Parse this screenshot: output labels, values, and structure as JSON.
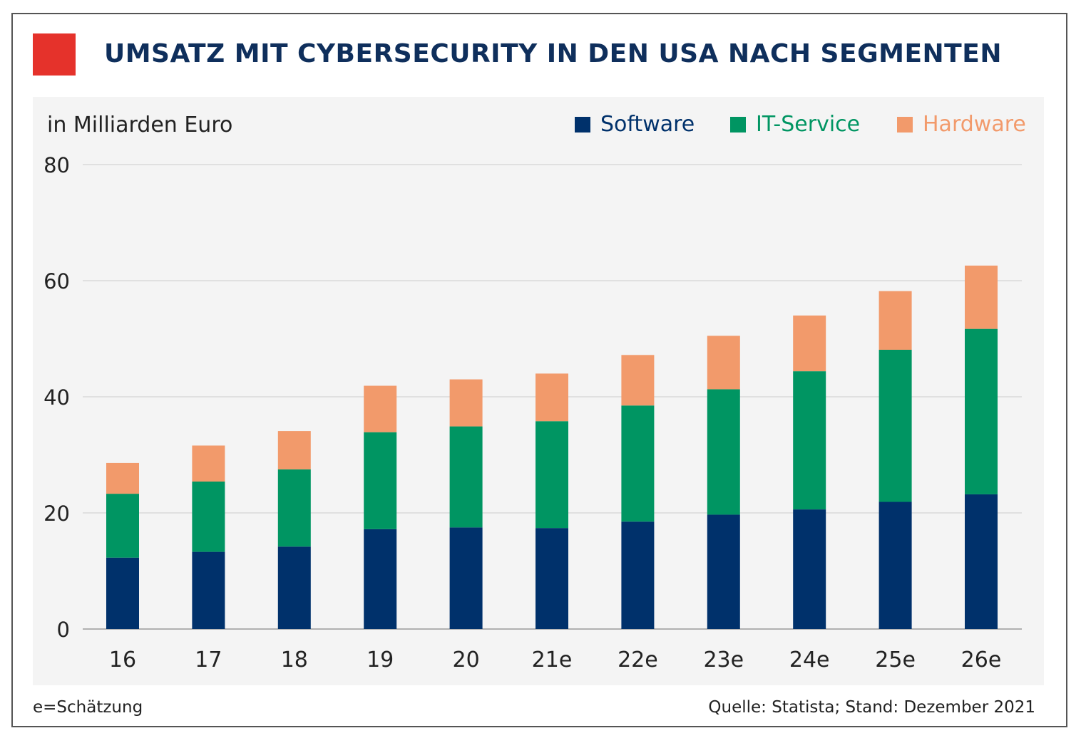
{
  "colors": {
    "accent_square": "#e5322b",
    "title": "#0f2f5c",
    "software": "#00316b",
    "it_service": "#009562",
    "hardware": "#f29a6b",
    "grid": "#cccccc"
  },
  "chart_data": {
    "type": "bar",
    "stacked": true,
    "title": "UMSATZ MIT CYBERSECURITY IN DEN USA NACH SEGMENTEN",
    "ylabel": "in Milliarden Euro",
    "xlabel": "",
    "ylim": [
      0,
      80
    ],
    "yticks": [
      0,
      20,
      40,
      60,
      80
    ],
    "grid": true,
    "legend_position": "top-right",
    "categories": [
      "16",
      "17",
      "18",
      "19",
      "20",
      "21e",
      "22e",
      "23e",
      "24e",
      "25e",
      "26e"
    ],
    "series": [
      {
        "name": "Software",
        "values": [
          12.3,
          13.3,
          14.2,
          17.2,
          17.5,
          17.4,
          18.5,
          19.7,
          20.6,
          21.9,
          23.2
        ]
      },
      {
        "name": "IT-Service",
        "values": [
          11.0,
          12.1,
          13.3,
          16.7,
          17.4,
          18.4,
          20.0,
          21.6,
          23.8,
          26.2,
          28.5
        ]
      },
      {
        "name": "Hardware",
        "values": [
          5.3,
          6.2,
          6.6,
          8.0,
          8.1,
          8.2,
          8.7,
          9.2,
          9.6,
          10.1,
          10.9
        ]
      }
    ],
    "footnote": "e=Schätzung",
    "source": "Quelle: Statista; Stand: Dezember 2021"
  }
}
